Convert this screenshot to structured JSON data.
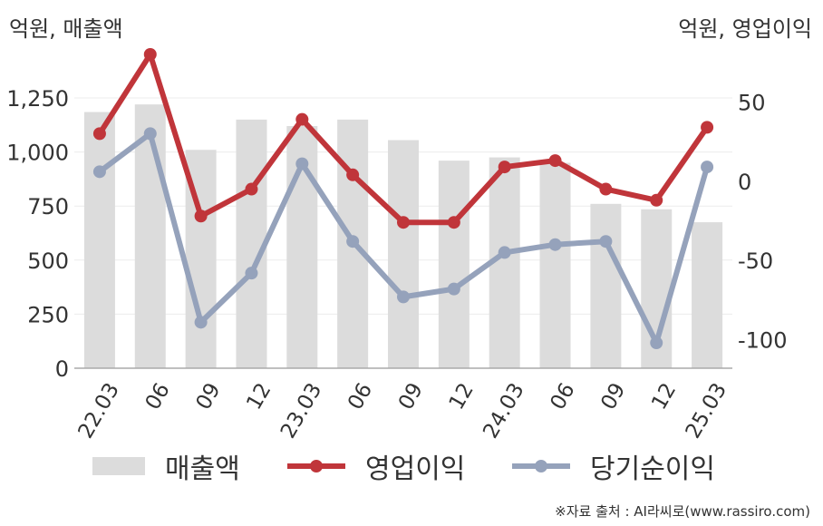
{
  "units": {
    "left": "억원, 매출액",
    "right": "억원, 영업이익"
  },
  "legend": {
    "items": [
      {
        "label": "매출액",
        "color": "#dcdcdc",
        "kind": "bar"
      },
      {
        "label": "영업이익",
        "color": "#c0353a",
        "kind": "line"
      },
      {
        "label": "당기순이익",
        "color": "#95a2bb",
        "kind": "line"
      }
    ]
  },
  "source": "※자료 출처 : AI라씨로(www.rassiro.com)",
  "chart_data": {
    "type": "bar+line",
    "categories": [
      "22.03",
      "06",
      "09",
      "12",
      "23.03",
      "06",
      "09",
      "12",
      "24.03",
      "06",
      "09",
      "12",
      "25.03"
    ],
    "left_axis": {
      "label": "억원, 매출액",
      "ylim": [
        0,
        1250
      ],
      "ticks": [
        0,
        250,
        500,
        750,
        1000,
        1250
      ],
      "tick_labels": [
        "0",
        "250",
        "500",
        "750",
        "1,000",
        "1,250"
      ]
    },
    "right_axis": {
      "label": "억원, 영업이익",
      "ylim": [
        -118,
        80
      ],
      "ticks": [
        -100,
        -50,
        0,
        50
      ],
      "tick_labels": [
        "-100",
        "-50",
        "0",
        "50"
      ]
    },
    "series": [
      {
        "name": "매출액",
        "type": "bar",
        "axis": "left",
        "color": "#dcdcdc",
        "values": [
          1185,
          1220,
          1010,
          1150,
          1120,
          1150,
          1055,
          960,
          975,
          950,
          760,
          735,
          675
        ]
      },
      {
        "name": "영업이익",
        "type": "line",
        "axis": "right",
        "color": "#c0353a",
        "values": [
          30,
          80,
          -22,
          -5,
          39,
          4,
          -26,
          -26,
          9,
          13,
          -5,
          -12,
          34
        ]
      },
      {
        "name": "당기순이익",
        "type": "line",
        "axis": "right",
        "color": "#95a2bb",
        "values": [
          6,
          30,
          -89,
          -58,
          11,
          -38,
          -73,
          -68,
          -45,
          -40,
          -38,
          -102,
          9
        ]
      }
    ],
    "grid": true,
    "legend_position": "bottom"
  }
}
